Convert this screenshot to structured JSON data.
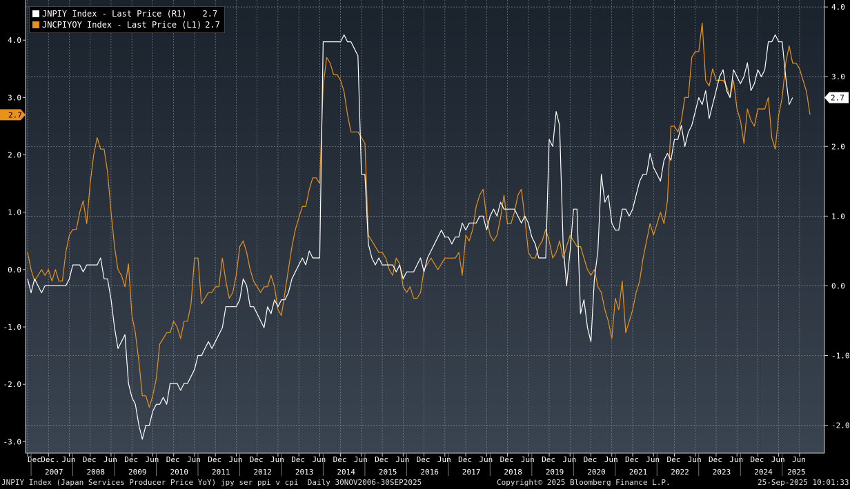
{
  "legend": {
    "items": [
      {
        "label": "JNPIY Index - Last Price (R1)",
        "value": "2.7",
        "color": "#ffffff"
      },
      {
        "label": "JNCPIYOY Index - Last Price (L1)",
        "value": "2.7",
        "color": "#e8921b"
      }
    ]
  },
  "footer": {
    "left": "JNPIY Index (Japan Services Producer Price YoY) jpy ser ppi v cpi  Daily 30NOV2006-30SEP2025",
    "center": "Copyright© 2025 Bloomberg Finance L.P.",
    "right": "25-Sep-2025 10:01:33"
  },
  "chart_data": {
    "type": "line",
    "x_start": "2006-12",
    "x_end": "2025-08",
    "y_left": {
      "range": [
        -3.2,
        4.7
      ],
      "ticks": [
        "-3.0",
        "-2.0",
        "-1.0",
        "0.0",
        "1.0",
        "2.0",
        "3.0",
        "4.0"
      ],
      "last_value_tag": "2.7"
    },
    "y_right": {
      "range": [
        -2.4,
        4.1
      ],
      "ticks": [
        "-2.0",
        "-1.0",
        "0.0",
        "1.0",
        "2.0",
        "3.0",
        "4.0"
      ],
      "last_value_tag": "2.7"
    },
    "x_year_labels": [
      "2007",
      "2008",
      "2009",
      "2010",
      "2011",
      "2012",
      "2013",
      "2014",
      "2015",
      "2016",
      "2017",
      "2018",
      "2019",
      "2020",
      "2021",
      "2022",
      "2023",
      "2024",
      "2025"
    ],
    "x_month_labels": [
      "Dec ...",
      "Dec",
      "Jun",
      "Dec",
      "Jun",
      "Dec",
      "Jun",
      "Dec",
      "Jun",
      "Dec",
      "Jun",
      "Dec",
      "Jun",
      "Dec",
      "Jun",
      "Dec",
      "Jun",
      "Dec",
      "Jun",
      "Dec",
      "Jun",
      "Dec",
      "Jun",
      "Dec",
      "Jun",
      "Dec",
      "Jun",
      "Dec",
      "Jun",
      "Dec",
      "Jun",
      "Dec",
      "Jun",
      "Dec",
      "Jun",
      "Dec",
      "Jun",
      "Jun"
    ],
    "series": [
      {
        "name": "JNCPIYOY Index - Last Price (L1)",
        "axis": "left",
        "color": "#e8921b",
        "values": [
          0.3,
          0.0,
          -0.2,
          -0.1,
          0.0,
          -0.1,
          0.0,
          -0.2,
          0.0,
          -0.2,
          -0.2,
          0.3,
          0.6,
          0.7,
          0.7,
          1.0,
          1.2,
          0.8,
          1.5,
          2.0,
          2.3,
          2.1,
          2.1,
          1.7,
          1.0,
          0.4,
          0.0,
          -0.1,
          -0.3,
          0.1,
          -0.8,
          -1.1,
          -1.6,
          -2.2,
          -2.2,
          -2.4,
          -2.2,
          -1.9,
          -1.3,
          -1.2,
          -1.1,
          -1.1,
          -0.9,
          -1.0,
          -1.2,
          -0.9,
          -0.9,
          -0.6,
          0.2,
          0.2,
          -0.6,
          -0.5,
          -0.4,
          -0.4,
          -0.3,
          -0.3,
          0.2,
          -0.2,
          -0.5,
          -0.4,
          -0.1,
          0.4,
          0.5,
          0.3,
          0.0,
          -0.2,
          -0.3,
          -0.4,
          -0.3,
          -0.3,
          -0.1,
          -0.3,
          -0.7,
          -0.8,
          -0.4,
          0.0,
          0.4,
          0.7,
          0.9,
          1.1,
          1.1,
          1.4,
          1.6,
          1.6,
          1.5,
          3.2,
          3.7,
          3.6,
          3.4,
          3.4,
          3.3,
          3.1,
          2.7,
          2.4,
          2.4,
          2.4,
          2.3,
          2.2,
          0.6,
          0.5,
          0.4,
          0.3,
          0.3,
          0.2,
          0.0,
          -0.1,
          0.2,
          0.1,
          -0.3,
          -0.4,
          -0.3,
          -0.5,
          -0.5,
          -0.4,
          0.0,
          0.1,
          0.2,
          0.1,
          0.0,
          0.1,
          0.2,
          0.2,
          0.2,
          0.2,
          0.3,
          -0.1,
          0.6,
          0.5,
          0.7,
          1.1,
          1.3,
          1.4,
          0.9,
          0.6,
          0.5,
          0.6,
          0.9,
          1.3,
          0.8,
          0.8,
          1.0,
          1.3,
          1.4,
          0.9,
          0.3,
          0.2,
          0.2,
          0.4,
          0.5,
          0.7,
          0.5,
          0.2,
          0.3,
          0.5,
          0.2,
          0.4,
          0.6,
          0.5,
          0.4,
          0.4,
          0.2,
          0.0,
          -0.1,
          0.0,
          -0.3,
          -0.4,
          -0.7,
          -0.9,
          -1.2,
          -0.5,
          -0.7,
          -0.2,
          -1.1,
          -0.9,
          -0.7,
          -0.4,
          -0.2,
          0.2,
          0.5,
          0.8,
          0.6,
          0.8,
          1.0,
          0.8,
          1.2,
          2.5,
          2.5,
          2.4,
          2.6,
          3.0,
          3.0,
          3.7,
          3.8,
          3.8,
          4.3,
          3.3,
          3.2,
          3.5,
          3.3,
          3.3,
          3.3,
          3.2,
          3.0,
          3.3,
          2.8,
          2.6,
          2.2,
          2.8,
          2.6,
          2.5,
          2.8,
          2.8,
          2.8,
          3.0,
          2.3,
          2.1,
          2.7,
          3.0,
          3.6,
          3.9,
          3.6,
          3.6,
          3.5,
          3.3,
          3.1,
          2.7
        ]
      },
      {
        "name": "JNPIY Index - Last Price (R1)",
        "axis": "right",
        "color": "#ffffff",
        "values": [
          0.1,
          -0.1,
          0.1,
          0.0,
          -0.1,
          0.0,
          0.0,
          0.0,
          0.0,
          0.0,
          0.0,
          0.0,
          0.1,
          0.3,
          0.3,
          0.3,
          0.2,
          0.3,
          0.3,
          0.3,
          0.3,
          0.4,
          0.1,
          0.1,
          -0.2,
          -0.6,
          -0.9,
          -0.8,
          -0.7,
          -1.4,
          -1.6,
          -1.7,
          -2.0,
          -2.2,
          -2.0,
          -2.0,
          -1.8,
          -1.7,
          -1.7,
          -1.6,
          -1.7,
          -1.4,
          -1.4,
          -1.4,
          -1.5,
          -1.4,
          -1.4,
          -1.3,
          -1.2,
          -1.0,
          -1.0,
          -0.9,
          -0.8,
          -0.9,
          -0.8,
          -0.7,
          -0.6,
          -0.3,
          -0.3,
          -0.3,
          -0.3,
          -0.2,
          0.1,
          0.0,
          -0.3,
          -0.3,
          -0.4,
          -0.5,
          -0.6,
          -0.3,
          -0.4,
          -0.2,
          -0.3,
          -0.2,
          -0.2,
          -0.1,
          0.1,
          0.2,
          0.3,
          0.4,
          0.3,
          0.5,
          0.4,
          0.4,
          0.4,
          3.5,
          3.5,
          3.5,
          3.5,
          3.5,
          3.5,
          3.6,
          3.5,
          3.5,
          3.4,
          3.3,
          1.6,
          1.6,
          0.6,
          0.4,
          0.3,
          0.4,
          0.3,
          0.3,
          0.3,
          0.3,
          0.2,
          0.3,
          0.1,
          0.2,
          0.2,
          0.2,
          0.3,
          0.4,
          0.2,
          0.4,
          0.5,
          0.6,
          0.7,
          0.8,
          0.7,
          0.7,
          0.6,
          0.7,
          0.7,
          0.9,
          0.8,
          0.9,
          0.9,
          0.9,
          1.0,
          1.0,
          0.8,
          1.0,
          1.1,
          1.0,
          1.2,
          1.1,
          1.1,
          1.1,
          1.1,
          1.0,
          0.9,
          1.0,
          0.9,
          0.7,
          0.6,
          0.4,
          0.4,
          0.4,
          2.1,
          2.0,
          2.5,
          2.3,
          0.6,
          0.0,
          0.5,
          1.1,
          1.1,
          -0.4,
          -0.2,
          -0.6,
          -0.8,
          0.1,
          0.5,
          1.6,
          1.2,
          1.3,
          0.9,
          0.8,
          0.8,
          1.1,
          1.1,
          1.0,
          1.1,
          1.3,
          1.5,
          1.6,
          1.6,
          1.9,
          1.7,
          1.6,
          1.5,
          1.8,
          1.9,
          1.8,
          2.1,
          2.1,
          2.3,
          2.0,
          2.2,
          2.3,
          2.5,
          2.7,
          2.6,
          2.8,
          2.4,
          2.6,
          2.8,
          3.0,
          3.1,
          2.8,
          2.7,
          3.1,
          3.0,
          2.9,
          3.0,
          3.2,
          2.8,
          2.9,
          3.1,
          3.0,
          3.1,
          3.5,
          3.5,
          3.6,
          3.5,
          3.5,
          3.0,
          2.6,
          2.7
        ]
      }
    ]
  }
}
